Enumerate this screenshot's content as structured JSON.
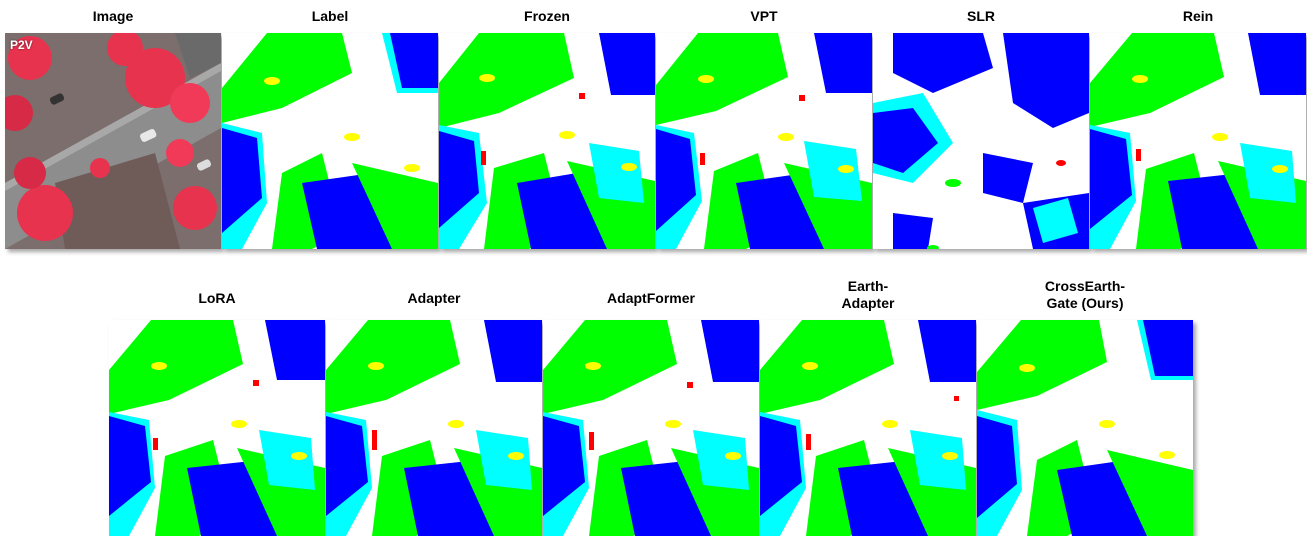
{
  "figure": {
    "badge": "P2V",
    "top_row": [
      {
        "key": "image",
        "title": "Image"
      },
      {
        "key": "label",
        "title": "Label"
      },
      {
        "key": "frozen",
        "title": "Frozen"
      },
      {
        "key": "vpt",
        "title": "VPT"
      },
      {
        "key": "slr",
        "title": "SLR"
      },
      {
        "key": "rein",
        "title": "Rein"
      }
    ],
    "bottom_row": [
      {
        "key": "lora",
        "title": "LoRA"
      },
      {
        "key": "adapter",
        "title": "Adapter"
      },
      {
        "key": "adaptformer",
        "title": "AdaptFormer"
      },
      {
        "key": "earth_adapter",
        "title": "Earth-\nAdapter"
      },
      {
        "key": "crossearth_gate",
        "title": "CrossEarth-\nGate (Ours)"
      }
    ]
  },
  "palette": {
    "surface": "#ffffff",
    "building": "#0000ff",
    "low_vegetation": "#00ffff",
    "tree": "#00ff00",
    "car": "#ffff00",
    "clutter": "#ff0000",
    "ir_tree": "#e8334f",
    "ir_road": "#8d8d8d",
    "ir_roof": "#6f5b57"
  }
}
